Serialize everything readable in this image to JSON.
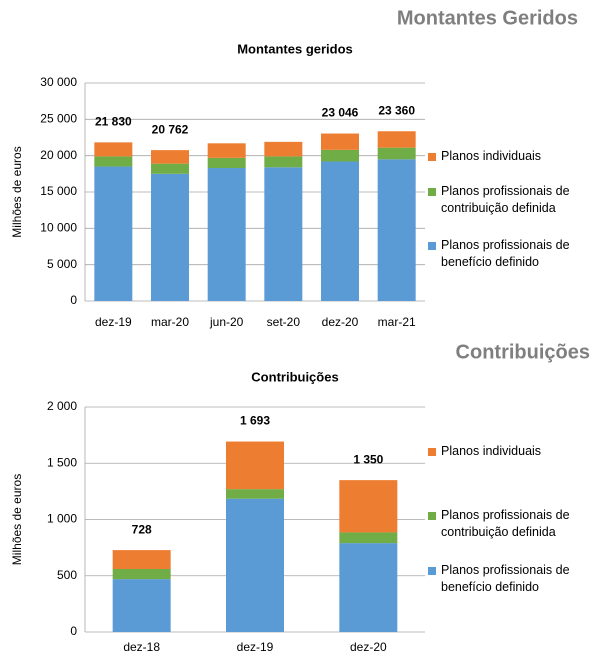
{
  "headings": [
    "Montantes Geridos",
    "Contribuições"
  ],
  "chart_data": [
    {
      "type": "stacked_bar",
      "title": "Montantes geridos",
      "y_label": "Milhões de euros",
      "categories": [
        "dez-19",
        "mar-20",
        "jun-20",
        "set-20",
        "dez-20",
        "mar-21"
      ],
      "series": [
        {
          "name": "Planos profissionais de benefício definido",
          "color": "#5b9bd5",
          "values": [
            18500,
            17500,
            18300,
            18400,
            19200,
            19500
          ]
        },
        {
          "name": "Planos profissionais de contribuição definida",
          "color": "#70ad47",
          "values": [
            1400,
            1400,
            1400,
            1500,
            1600,
            1600
          ]
        },
        {
          "name": "Planos individuais",
          "color": "#ed7d31",
          "values": [
            1930,
            1862,
            2000,
            2000,
            2246,
            2260
          ]
        }
      ],
      "totals": [
        21830,
        20762,
        null,
        null,
        23046,
        23360
      ],
      "total_labels": [
        "21 830",
        "20 762",
        null,
        null,
        "23 046",
        "23 360"
      ],
      "ylim": [
        0,
        30000
      ],
      "yticks": [
        0,
        {
          "value": 5000,
          "label": "5 000"
        },
        {
          "value": 10000,
          "label": "10 000"
        },
        {
          "value": 15000,
          "label": "15 000"
        },
        {
          "value": 20000,
          "label": "20 000"
        },
        {
          "value": 25000,
          "label": "25 000"
        },
        {
          "value": 30000,
          "label": "30 000"
        }
      ],
      "grid": true,
      "legend": "right"
    },
    {
      "type": "stacked_bar",
      "title": "Contribuições",
      "y_label": "Milhões de euros",
      "categories": [
        "dez-18",
        "dez-19",
        "dez-20"
      ],
      "series": [
        {
          "name": "Planos profissionais de benefício definido",
          "color": "#5b9bd5",
          "values": [
            470,
            1185,
            790
          ]
        },
        {
          "name": "Planos profissionais de contribuição definida",
          "color": "#70ad47",
          "values": [
            90,
            85,
            95
          ]
        },
        {
          "name": "Planos individuais",
          "color": "#ed7d31",
          "values": [
            168,
            423,
            465
          ]
        }
      ],
      "totals": [
        728,
        1693,
        1350
      ],
      "total_labels": [
        "728",
        "1 693",
        "1 350"
      ],
      "ylim": [
        0,
        2000
      ],
      "yticks": [
        0,
        500,
        {
          "value": 1000,
          "label": "1 000"
        },
        {
          "value": 1500,
          "label": "1 500"
        },
        {
          "value": 2000,
          "label": "2 000"
        }
      ],
      "grid": true,
      "legend": "right"
    }
  ]
}
